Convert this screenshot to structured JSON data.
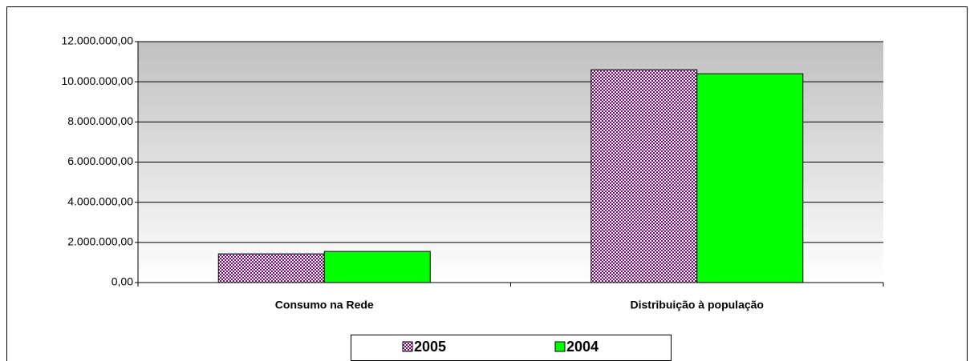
{
  "chart_data": {
    "type": "bar",
    "categories": [
      "Consumo na Rede",
      "Distribuição à população"
    ],
    "series": [
      {
        "name": "2005",
        "color": "#800080",
        "values": [
          1430000,
          10600000
        ]
      },
      {
        "name": "2004",
        "color": "#00ff00",
        "values": [
          1550000,
          10400000
        ]
      }
    ],
    "ylim": [
      0,
      12000000
    ],
    "yticks": [
      {
        "value": 0,
        "label": "0,00"
      },
      {
        "value": 2000000,
        "label": "2.000.000,00"
      },
      {
        "value": 4000000,
        "label": "4.000.000,00"
      },
      {
        "value": 6000000,
        "label": "6.000.000,00"
      },
      {
        "value": 8000000,
        "label": "8.000.000,00"
      },
      {
        "value": 10000000,
        "label": "10.000.000,00"
      },
      {
        "value": 12000000,
        "label": "12.000.000,00"
      }
    ],
    "grid": true,
    "legend": "bottom"
  }
}
